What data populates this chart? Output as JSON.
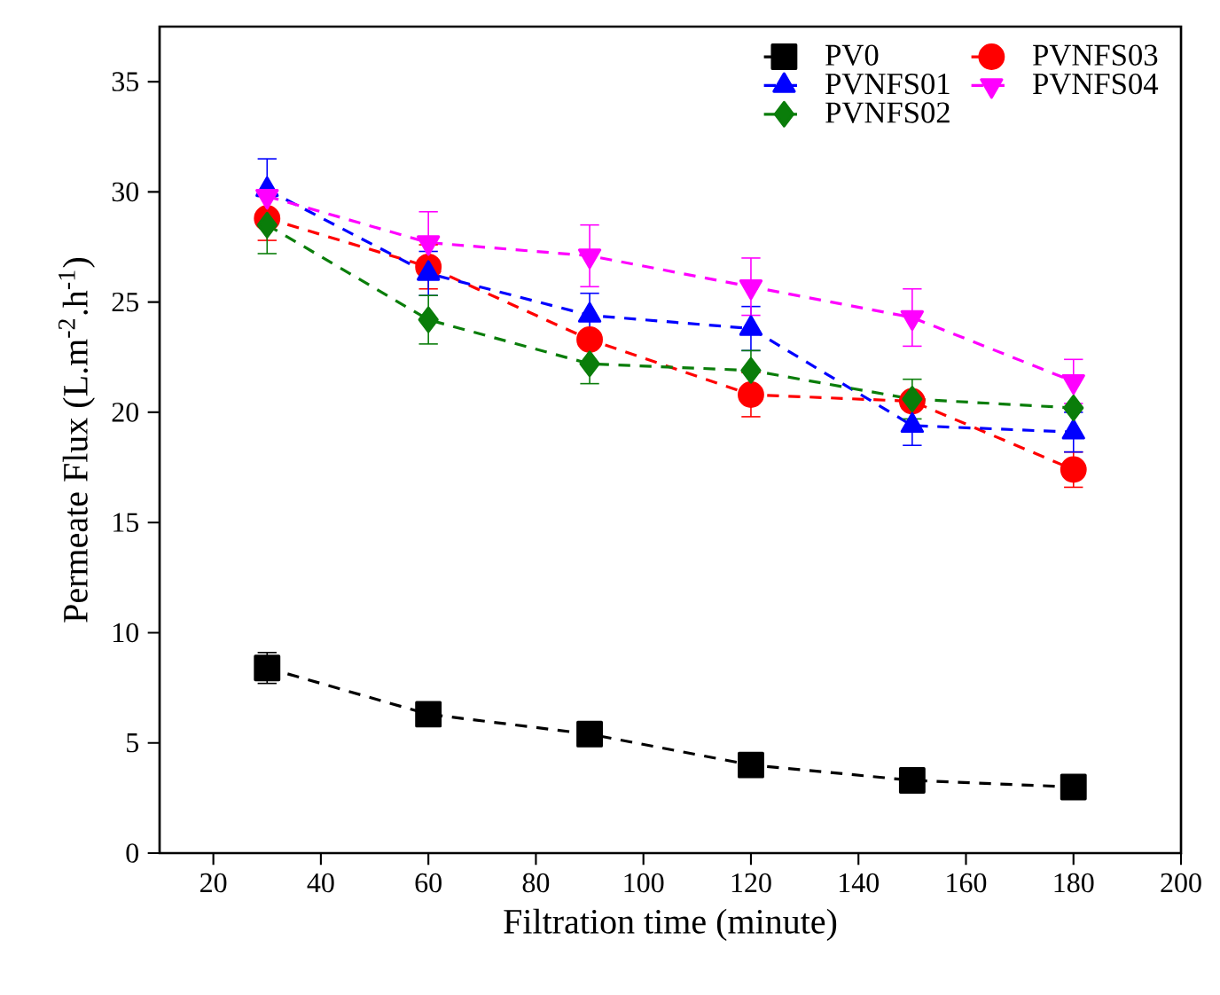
{
  "chart_data": {
    "type": "line",
    "xlabel": "Filtration time (minute)",
    "ylabel": "Permeate Flux (L.m$^{-2}$.h$^{-1}$)",
    "x": [
      30,
      60,
      90,
      120,
      150,
      180
    ],
    "xlim": [
      10,
      200
    ],
    "xticks": [
      20,
      40,
      60,
      80,
      100,
      120,
      140,
      160,
      180,
      200
    ],
    "ylim": [
      0,
      37.5
    ],
    "yticks": [
      0,
      5,
      10,
      15,
      20,
      25,
      30,
      35
    ],
    "grid": false,
    "legend": "top right",
    "line_style": "dashed",
    "series": [
      {
        "name": "PV0",
        "color": "#000000",
        "marker": "square",
        "values": [
          8.4,
          6.3,
          5.4,
          4.0,
          3.3,
          3.0
        ],
        "errors": [
          0.7,
          0.3,
          0.3,
          0.3,
          0.3,
          0.3
        ]
      },
      {
        "name": "PVNFS01",
        "color": "#0000ff",
        "marker": "triangle",
        "values": [
          30.1,
          26.3,
          24.4,
          23.8,
          19.4,
          19.1
        ],
        "errors": [
          1.4,
          1.0,
          1.0,
          1.0,
          0.9,
          0.9
        ]
      },
      {
        "name": "PVNFS02",
        "color": "#0a7d0a",
        "marker": "diamond",
        "values": [
          28.5,
          24.2,
          22.2,
          21.9,
          20.6,
          20.2
        ],
        "errors": [
          1.3,
          1.1,
          0.9,
          0.9,
          0.9,
          null
        ]
      },
      {
        "name": "PVNFS03",
        "color": "#ff0000",
        "marker": "circle",
        "values": [
          28.8,
          26.6,
          23.3,
          20.8,
          20.5,
          17.4
        ],
        "errors": [
          1.0,
          1.0,
          null,
          1.0,
          null,
          0.8
        ]
      },
      {
        "name": "PVNFS04",
        "color": "#ff00ff",
        "marker": "triangle-down",
        "values": [
          29.8,
          27.7,
          27.1,
          25.7,
          24.3,
          21.4
        ],
        "errors": [
          null,
          1.4,
          1.4,
          1.3,
          1.3,
          1.0
        ]
      }
    ]
  }
}
